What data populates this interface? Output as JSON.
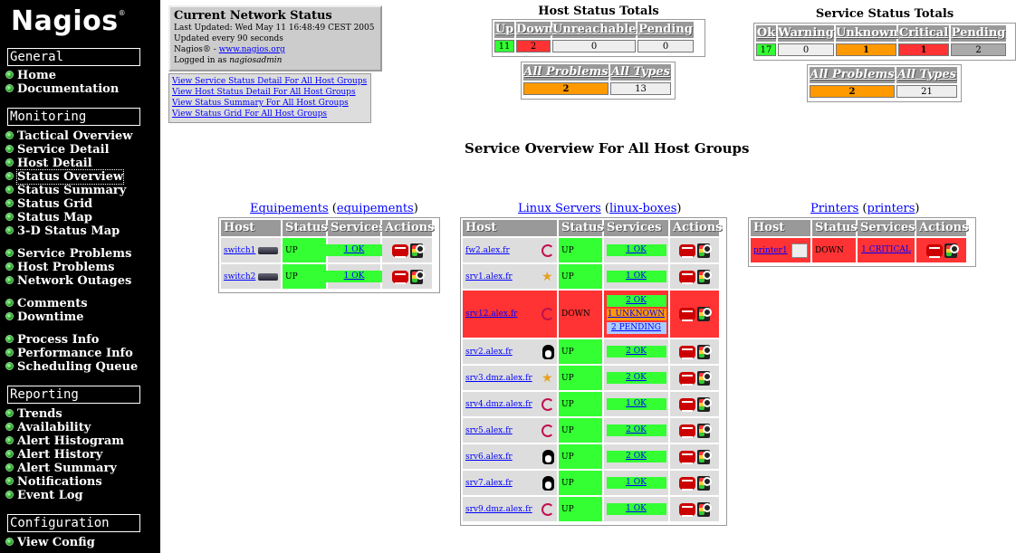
{
  "sidebar": {
    "logo": "Nagios",
    "logo_mark": "®",
    "sections": [
      {
        "title": "General",
        "items": [
          "Home",
          "Documentation"
        ]
      },
      {
        "title": "Monitoring",
        "items": [
          "Tactical Overview",
          "Service Detail",
          "Host Detail",
          "Status Overview",
          "Status Summary",
          "Status Grid",
          "Status Map",
          "3-D Status Map",
          "Service Problems",
          "Host Problems",
          "Network Outages",
          "Comments",
          "Downtime",
          "Process Info",
          "Performance Info",
          "Scheduling Queue"
        ]
      },
      {
        "title": "Reporting",
        "items": [
          "Trends",
          "Availability",
          "Alert Histogram",
          "Alert History",
          "Alert Summary",
          "Notifications",
          "Event Log"
        ]
      },
      {
        "title": "Configuration",
        "items": [
          "View Config"
        ]
      }
    ],
    "selected": "Status Overview"
  },
  "status": {
    "title": "Current Network Status",
    "updated": "Last Updated: Wed May 11 16:48:49 CEST 2005",
    "interval": "Updated every 90 seconds",
    "nagios_prefix": "Nagios® - ",
    "nagios_link": "www.nagios.org",
    "logged_prefix": "Logged in as ",
    "user": "nagiosadmin",
    "links": [
      "View Service Status Detail For All Host Groups",
      "View Host Status Detail For All Host Groups",
      "View Status Summary For All Host Groups",
      "View Status Grid For All Host Groups"
    ]
  },
  "host_totals": {
    "title": "Host Status Totals",
    "headers": [
      "Up",
      "Down",
      "Unreachable",
      "Pending"
    ],
    "values": [
      "11",
      "2",
      "0",
      "0"
    ],
    "sub_headers": [
      "All Problems",
      "All Types"
    ],
    "sub_values": [
      "2",
      "13"
    ]
  },
  "service_totals": {
    "title": "Service Status Totals",
    "headers": [
      "Ok",
      "Warning",
      "Unknown",
      "Critical",
      "Pending"
    ],
    "values": [
      "17",
      "0",
      "1",
      "1",
      "2"
    ],
    "sub_headers": [
      "All Problems",
      "All Types"
    ],
    "sub_values": [
      "2",
      "21"
    ]
  },
  "overview": {
    "title": "Service Overview For All Host Groups",
    "col_headers": [
      "Host",
      "Status",
      "Services",
      "Actions"
    ],
    "groups": [
      {
        "name": "Equipements",
        "alias": "equipements",
        "hosts": [
          {
            "name": "switch1",
            "icon": "switch-icon",
            "status": "UP",
            "services": [
              "1 OK"
            ]
          },
          {
            "name": "switch2",
            "icon": "switch-icon",
            "status": "UP",
            "services": [
              "1 OK"
            ]
          }
        ]
      },
      {
        "name": "Linux Servers",
        "alias": "linux-boxes",
        "hosts": [
          {
            "name": "fw2.alex.fr",
            "icon": "debian-icon",
            "status": "UP",
            "services": [
              "1 OK"
            ]
          },
          {
            "name": "srv1.alex.fr",
            "icon": "suse-icon",
            "status": "UP",
            "services": [
              "1 OK"
            ]
          },
          {
            "name": "srv12.alex.fr",
            "icon": "debian-icon",
            "status": "DOWN",
            "services": [
              "2 OK",
              "1 UNKNOWN",
              "2 PENDING"
            ]
          },
          {
            "name": "srv2.alex.fr",
            "icon": "tux-icon",
            "status": "UP",
            "services": [
              "2 OK"
            ]
          },
          {
            "name": "srv3.dmz.alex.fr",
            "icon": "suse-icon",
            "status": "UP",
            "services": [
              "2 OK"
            ]
          },
          {
            "name": "srv4.dmz.alex.fr",
            "icon": "debian-icon",
            "status": "UP",
            "services": [
              "1 OK"
            ]
          },
          {
            "name": "srv5.alex.fr",
            "icon": "debian-icon",
            "status": "UP",
            "services": [
              "2 OK"
            ]
          },
          {
            "name": "srv6.alex.fr",
            "icon": "tux-icon",
            "status": "UP",
            "services": [
              "2 OK"
            ]
          },
          {
            "name": "srv7.alex.fr",
            "icon": "tux-icon",
            "status": "UP",
            "services": [
              "1 OK"
            ]
          },
          {
            "name": "srv9.dmz.alex.fr",
            "icon": "debian-icon",
            "status": "UP",
            "services": [
              "1 OK"
            ]
          }
        ]
      },
      {
        "name": "Printers",
        "alias": "printers",
        "hosts": [
          {
            "name": "printer1",
            "icon": "printer-icon",
            "status": "DOWN",
            "services": [
              "1 CRITICAL"
            ]
          }
        ]
      }
    ]
  }
}
